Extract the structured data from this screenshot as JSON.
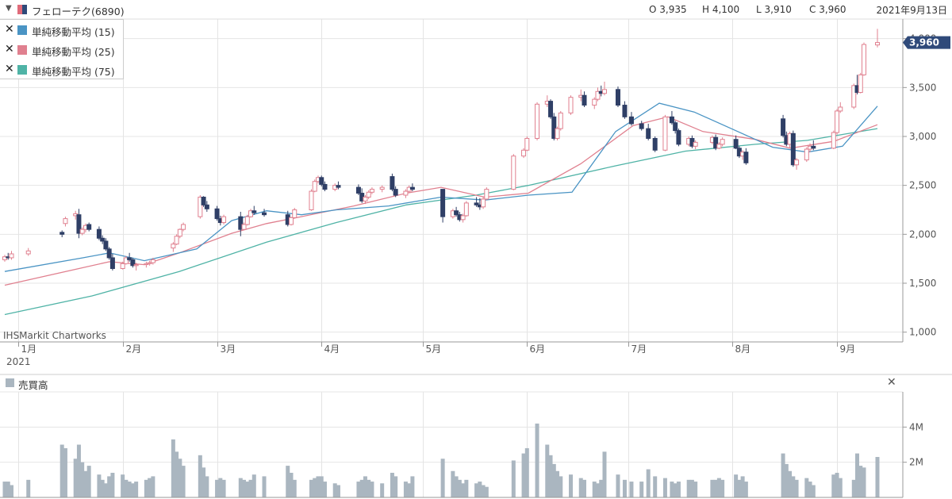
{
  "header": {
    "ticker": "フェローテク(6890)",
    "open": "O 3,935",
    "high": "H 4,100",
    "low": "L 3,910",
    "close": "C 3,960",
    "date": "2021年9月13日"
  },
  "legend": {
    "items": [
      {
        "label": "単純移動平均 (15)",
        "color": "#4a94c4"
      },
      {
        "label": "単純移動平均 (25)",
        "color": "#e0808f"
      },
      {
        "label": "単純移動平均 (75)",
        "color": "#4fb3a6"
      }
    ]
  },
  "watermark": "IHSMarkit Chartworks",
  "last_price_label": "3,960",
  "volume_panel": {
    "title": "売買高",
    "color": "#aab6c0"
  },
  "chart_data": {
    "type": "candlestick",
    "x_labels": [
      "1月",
      "2月",
      "3月",
      "4月",
      "5月",
      "6月",
      "7月",
      "8月",
      "9月"
    ],
    "year_label": "2021",
    "y_ticks": [
      "1,000",
      "1,500",
      "2,000",
      "2,500",
      "3,000",
      "3,500",
      "4,000"
    ],
    "y_tick_values": [
      1000,
      1500,
      2000,
      2500,
      3000,
      3500,
      4000
    ],
    "ylim": [
      900,
      4200
    ],
    "volume_ticks": [
      "2M",
      "4M"
    ],
    "volume_tick_values": [
      2000000,
      4000000
    ],
    "volume_ylim": [
      0,
      6000000
    ],
    "colors": {
      "up": "#e0808f",
      "down": "#2f3f66",
      "ma15": "#4a94c4",
      "ma25": "#e0808f",
      "ma75": "#4fb3a6",
      "volume": "#aab6c0",
      "last_price_bg": "#2f4a7a"
    },
    "last_price": 3960,
    "candles": [
      [
        1740,
        1790,
        1720,
        1770
      ],
      [
        1770,
        1810,
        1740,
        1760
      ],
      [
        1760,
        1830,
        1740,
        1800
      ],
      [
        1800,
        1860,
        1780,
        1830
      ],
      [
        2020,
        2040,
        1970,
        2000
      ],
      [
        2110,
        2180,
        2080,
        2160
      ],
      [
        2190,
        2240,
        2150,
        2210
      ],
      [
        2200,
        2260,
        1960,
        2010
      ],
      [
        2010,
        2070,
        1990,
        2050
      ],
      [
        2050,
        2110,
        2020,
        2090
      ],
      [
        2100,
        2120,
        2030,
        2050
      ],
      [
        2050,
        2080,
        1940,
        1960
      ],
      [
        1960,
        1990,
        1900,
        1930
      ],
      [
        1930,
        1960,
        1830,
        1850
      ],
      [
        1850,
        1870,
        1740,
        1760
      ],
      [
        1760,
        1800,
        1630,
        1650
      ],
      [
        1650,
        1720,
        1640,
        1700
      ],
      [
        1700,
        1780,
        1690,
        1760
      ],
      [
        1760,
        1810,
        1720,
        1740
      ],
      [
        1740,
        1760,
        1660,
        1680
      ],
      [
        1680,
        1710,
        1630,
        1690
      ],
      [
        1690,
        1720,
        1660,
        1700
      ],
      [
        1700,
        1730,
        1680,
        1710
      ],
      [
        1710,
        1760,
        1690,
        1740
      ],
      [
        1860,
        1920,
        1820,
        1900
      ],
      [
        1900,
        2000,
        1890,
        1980
      ],
      [
        1980,
        2060,
        1960,
        2050
      ],
      [
        2050,
        2120,
        2030,
        2100
      ],
      [
        2180,
        2400,
        2160,
        2380
      ],
      [
        2380,
        2390,
        2280,
        2300
      ],
      [
        2300,
        2340,
        2230,
        2260
      ],
      [
        2260,
        2290,
        2140,
        2160
      ],
      [
        2160,
        2190,
        2090,
        2120
      ],
      [
        2120,
        2200,
        2100,
        2180
      ],
      [
        2180,
        2230,
        1980,
        2050
      ],
      [
        2050,
        2120,
        2040,
        2100
      ],
      [
        2100,
        2200,
        2090,
        2180
      ],
      [
        2180,
        2260,
        2170,
        2240
      ],
      [
        2240,
        2290,
        2200,
        2220
      ],
      [
        2220,
        2260,
        2180,
        2200
      ],
      [
        2200,
        2240,
        2080,
        2100
      ],
      [
        2100,
        2180,
        2090,
        2170
      ],
      [
        2170,
        2270,
        2160,
        2250
      ],
      [
        2250,
        2460,
        2240,
        2440
      ],
      [
        2440,
        2560,
        2430,
        2540
      ],
      [
        2540,
        2600,
        2520,
        2580
      ],
      [
        2580,
        2600,
        2490,
        2510
      ],
      [
        2510,
        2540,
        2440,
        2460
      ],
      [
        2460,
        2520,
        2440,
        2500
      ],
      [
        2500,
        2540,
        2460,
        2480
      ],
      [
        2480,
        2510,
        2400,
        2420
      ],
      [
        2420,
        2470,
        2320,
        2340
      ],
      [
        2340,
        2400,
        2310,
        2380
      ],
      [
        2380,
        2450,
        2360,
        2430
      ],
      [
        2430,
        2480,
        2410,
        2460
      ],
      [
        2460,
        2500,
        2430,
        2480
      ],
      [
        2590,
        2620,
        2440,
        2460
      ],
      [
        2460,
        2490,
        2380,
        2400
      ],
      [
        2400,
        2460,
        2370,
        2440
      ],
      [
        2440,
        2500,
        2420,
        2480
      ],
      [
        2480,
        2520,
        2440,
        2460
      ],
      [
        2460,
        2460,
        2120,
        2180
      ],
      [
        2180,
        2260,
        2160,
        2240
      ],
      [
        2240,
        2280,
        2180,
        2200
      ],
      [
        2200,
        2230,
        2130,
        2150
      ],
      [
        2150,
        2210,
        2120,
        2190
      ],
      [
        2190,
        2340,
        2180,
        2320
      ],
      [
        2320,
        2380,
        2280,
        2300
      ],
      [
        2300,
        2370,
        2250,
        2280
      ],
      [
        2280,
        2380,
        2260,
        2360
      ],
      [
        2360,
        2480,
        2350,
        2460
      ],
      [
        2460,
        2820,
        2450,
        2800
      ],
      [
        2800,
        2880,
        2780,
        2860
      ],
      [
        2860,
        3000,
        2850,
        2980
      ],
      [
        2980,
        3350,
        2960,
        3330
      ],
      [
        3330,
        3420,
        3300,
        3360
      ],
      [
        3360,
        3380,
        3180,
        3200
      ],
      [
        3200,
        3240,
        2960,
        2980
      ],
      [
        2980,
        3100,
        2960,
        3080
      ],
      [
        3080,
        3260,
        3060,
        3240
      ],
      [
        3240,
        3420,
        3220,
        3400
      ],
      [
        3400,
        3480,
        3360,
        3420
      ],
      [
        3420,
        3460,
        3300,
        3320
      ],
      [
        3320,
        3400,
        3280,
        3380
      ],
      [
        3380,
        3500,
        3360,
        3460
      ],
      [
        3460,
        3520,
        3410,
        3440
      ],
      [
        3440,
        3560,
        3420,
        3480
      ],
      [
        3480,
        3510,
        3300,
        3320
      ],
      [
        3320,
        3360,
        3180,
        3200
      ],
      [
        3200,
        3250,
        3110,
        3130
      ],
      [
        3130,
        3160,
        3060,
        3080
      ],
      [
        3080,
        3130,
        2960,
        2980
      ],
      [
        2980,
        3000,
        2840,
        2860
      ],
      [
        2860,
        3220,
        2850,
        3200
      ],
      [
        3200,
        3260,
        3120,
        3140
      ],
      [
        3140,
        3160,
        3030,
        3060
      ],
      [
        3060,
        3080,
        2900,
        2920
      ],
      [
        2920,
        3000,
        2900,
        2980
      ],
      [
        2980,
        3010,
        2880,
        2900
      ],
      [
        2900,
        2960,
        2870,
        2940
      ],
      [
        2940,
        3010,
        2920,
        2990
      ],
      [
        2990,
        3020,
        2860,
        2880
      ],
      [
        2880,
        2940,
        2870,
        2920
      ],
      [
        2920,
        2990,
        2900,
        2970
      ],
      [
        2970,
        3010,
        2870,
        2880
      ],
      [
        2880,
        2900,
        2780,
        2800
      ],
      [
        2800,
        2860,
        2760,
        2840
      ],
      [
        2840,
        2880,
        2710,
        2730
      ],
      [
        3180,
        3220,
        2990,
        3010
      ],
      [
        3010,
        3050,
        2900,
        2920
      ],
      [
        2920,
        3050,
        2880,
        3030
      ],
      [
        3030,
        3060,
        2690,
        2710
      ],
      [
        2710,
        2780,
        2660,
        2760
      ],
      [
        2760,
        2890,
        2740,
        2870
      ],
      [
        2870,
        2930,
        2840,
        2900
      ],
      [
        2900,
        2960,
        2860,
        2880
      ],
      [
        2880,
        3060,
        2870,
        3040
      ],
      [
        3040,
        3280,
        3020,
        3260
      ],
      [
        3260,
        3350,
        3240,
        3300
      ],
      [
        3300,
        3540,
        3280,
        3520
      ],
      [
        3520,
        3630,
        3430,
        3450
      ],
      [
        3450,
        3650,
        3440,
        3630
      ],
      [
        3630,
        3960,
        3620,
        3940
      ],
      [
        3935,
        4100,
        3910,
        3960
      ]
    ],
    "candle_dates": [
      "2020-12-28",
      "2020-12-29",
      "2020-12-30",
      "2021-01-04",
      "2021-01-14",
      "2021-01-15",
      "2021-01-18",
      "2021-01-19",
      "2021-01-20",
      "2021-01-21",
      "2021-01-22",
      "2021-01-25",
      "2021-01-26",
      "2021-01-27",
      "2021-01-28",
      "2021-01-29",
      "2021-02-01",
      "2021-02-02",
      "2021-02-03",
      "2021-02-04",
      "2021-02-05",
      "2021-02-08",
      "2021-02-09",
      "2021-02-10",
      "2021-02-16",
      "2021-02-17",
      "2021-02-18",
      "2021-02-19",
      "2021-02-24",
      "2021-02-25",
      "2021-02-26",
      "2021-03-01",
      "2021-03-02",
      "2021-03-03",
      "2021-03-08",
      "2021-03-09",
      "2021-03-10",
      "2021-03-11",
      "2021-03-12",
      "2021-03-15",
      "2021-03-22",
      "2021-03-23",
      "2021-03-24",
      "2021-03-29",
      "2021-03-30",
      "2021-03-31",
      "2021-04-01",
      "2021-04-02",
      "2021-04-05",
      "2021-04-06",
      "2021-04-12",
      "2021-04-13",
      "2021-04-14",
      "2021-04-15",
      "2021-04-16",
      "2021-04-19",
      "2021-04-22",
      "2021-04-23",
      "2021-04-26",
      "2021-04-27",
      "2021-04-28",
      "2021-05-07",
      "2021-05-10",
      "2021-05-11",
      "2021-05-12",
      "2021-05-13",
      "2021-05-14",
      "2021-05-17",
      "2021-05-18",
      "2021-05-19",
      "2021-05-20",
      "2021-05-28",
      "2021-05-31",
      "2021-06-01",
      "2021-06-04",
      "2021-06-07",
      "2021-06-08",
      "2021-06-09",
      "2021-06-10",
      "2021-06-11",
      "2021-06-14",
      "2021-06-17",
      "2021-06-18",
      "2021-06-21",
      "2021-06-22",
      "2021-06-23",
      "2021-06-24",
      "2021-06-28",
      "2021-06-30",
      "2021-07-02",
      "2021-07-05",
      "2021-07-07",
      "2021-07-09",
      "2021-07-12",
      "2021-07-14",
      "2021-07-15",
      "2021-07-16",
      "2021-07-19",
      "2021-07-20",
      "2021-07-21",
      "2021-07-26",
      "2021-07-27",
      "2021-07-28",
      "2021-07-29",
      "2021-08-02",
      "2021-08-03",
      "2021-08-04",
      "2021-08-05",
      "2021-08-16",
      "2021-08-17",
      "2021-08-18",
      "2021-08-19",
      "2021-08-20",
      "2021-08-23",
      "2021-08-24",
      "2021-08-25",
      "2021-08-31",
      "2021-09-01",
      "2021-09-02",
      "2021-09-06",
      "2021-09-07",
      "2021-09-08",
      "2021-09-09",
      "2021-09-13"
    ],
    "date_range": [
      "2020-12-28",
      "2021-09-13"
    ],
    "volume_m": [
      0.9,
      0.9,
      0.7,
      1.0,
      3.0,
      2.8,
      2.2,
      3.0,
      2.0,
      1.5,
      1.8,
      1.3,
      1.0,
      0.8,
      1.2,
      1.4,
      1.3,
      1.0,
      0.9,
      0.8,
      0.9,
      1.0,
      1.1,
      1.2,
      3.3,
      2.6,
      2.2,
      1.8,
      2.4,
      1.7,
      1.2,
      1.0,
      1.1,
      1.0,
      1.1,
      1.0,
      0.9,
      1.0,
      1.3,
      1.2,
      1.8,
      1.4,
      1.0,
      1.0,
      1.1,
      1.2,
      1.2,
      0.9,
      0.8,
      0.7,
      0.9,
      1.0,
      1.2,
      1.0,
      0.9,
      0.8,
      1.4,
      1.2,
      0.9,
      0.8,
      1.2,
      2.2,
      1.5,
      1.2,
      1.0,
      0.8,
      1.0,
      0.8,
      0.9,
      0.7,
      0.6,
      2.1,
      2.5,
      2.8,
      4.2,
      3.0,
      2.4,
      1.9,
      1.5,
      1.2,
      1.3,
      1.1,
      1.0,
      0.9,
      0.8,
      1.0,
      2.6,
      1.3,
      1.0,
      0.9,
      0.9,
      1.6,
      1.2,
      1.1,
      0.9,
      0.8,
      0.9,
      1.0,
      1.0,
      0.9,
      1.0,
      1.0,
      1.1,
      1.0,
      1.3,
      1.0,
      1.2,
      0.9,
      2.5,
      1.9,
      1.5,
      1.2,
      1.0,
      1.1,
      0.9,
      0.7,
      1.3,
      1.4,
      1.1,
      1.0,
      2.5,
      1.8,
      1.7,
      2.3
    ],
    "volume_dates": [
      "2020-12-28",
      "2020-12-29",
      "2020-12-30",
      "2021-01-04",
      "2021-01-14",
      "2021-01-15",
      "2021-01-18",
      "2021-01-19",
      "2021-01-20",
      "2021-01-21",
      "2021-01-22",
      "2021-01-25",
      "2021-01-26",
      "2021-01-27",
      "2021-01-28",
      "2021-01-29",
      "2021-02-01",
      "2021-02-02",
      "2021-02-03",
      "2021-02-04",
      "2021-02-05",
      "2021-02-08",
      "2021-02-09",
      "2021-02-10",
      "2021-02-16",
      "2021-02-17",
      "2021-02-18",
      "2021-02-19",
      "2021-02-24",
      "2021-02-25",
      "2021-02-26",
      "2021-03-01",
      "2021-03-02",
      "2021-03-03",
      "2021-03-08",
      "2021-03-09",
      "2021-03-10",
      "2021-03-11",
      "2021-03-12",
      "2021-03-15",
      "2021-03-22",
      "2021-03-23",
      "2021-03-24",
      "2021-03-29",
      "2021-03-30",
      "2021-03-31",
      "2021-04-01",
      "2021-04-02",
      "2021-04-05",
      "2021-04-06",
      "2021-04-12",
      "2021-04-13",
      "2021-04-14",
      "2021-04-15",
      "2021-04-16",
      "2021-04-19",
      "2021-04-22",
      "2021-04-23",
      "2021-04-26",
      "2021-04-27",
      "2021-04-28",
      "2021-05-07",
      "2021-05-10",
      "2021-05-11",
      "2021-05-12",
      "2021-05-13",
      "2021-05-14",
      "2021-05-17",
      "2021-05-18",
      "2021-05-19",
      "2021-05-20",
      "2021-05-28",
      "2021-05-31",
      "2021-06-01",
      "2021-06-04",
      "2021-06-07",
      "2021-06-08",
      "2021-06-09",
      "2021-06-10",
      "2021-06-11",
      "2021-06-14",
      "2021-06-17",
      "2021-06-18",
      "2021-06-21",
      "2021-06-22",
      "2021-06-23",
      "2021-06-24",
      "2021-06-28",
      "2021-06-30",
      "2021-07-02",
      "2021-07-05",
      "2021-07-07",
      "2021-07-09",
      "2021-07-12",
      "2021-07-14",
      "2021-07-15",
      "2021-07-16",
      "2021-07-19",
      "2021-07-20",
      "2021-07-21",
      "2021-07-26",
      "2021-07-27",
      "2021-07-28",
      "2021-07-29",
      "2021-08-02",
      "2021-08-03",
      "2021-08-04",
      "2021-08-05",
      "2021-08-16",
      "2021-08-17",
      "2021-08-18",
      "2021-08-19",
      "2021-08-20",
      "2021-08-23",
      "2021-08-24",
      "2021-08-25",
      "2021-08-31",
      "2021-09-01",
      "2021-09-02",
      "2021-09-06",
      "2021-09-07",
      "2021-09-08",
      "2021-09-09",
      "2021-09-13"
    ],
    "ma15": [
      [
        0.0,
        1620
      ],
      [
        0.09,
        1760
      ],
      [
        0.12,
        1810
      ],
      [
        0.16,
        1730
      ],
      [
        0.22,
        1850
      ],
      [
        0.26,
        2140
      ],
      [
        0.3,
        2240
      ],
      [
        0.34,
        2200
      ],
      [
        0.38,
        2250
      ],
      [
        0.44,
        2290
      ],
      [
        0.5,
        2380
      ],
      [
        0.55,
        2350
      ],
      [
        0.6,
        2400
      ],
      [
        0.65,
        2430
      ],
      [
        0.7,
        3050
      ],
      [
        0.75,
        3340
      ],
      [
        0.79,
        3250
      ],
      [
        0.84,
        3050
      ],
      [
        0.88,
        2890
      ],
      [
        0.92,
        2840
      ],
      [
        0.96,
        2900
      ],
      [
        1.0,
        3310
      ]
    ],
    "ma25": [
      [
        0.0,
        1480
      ],
      [
        0.08,
        1640
      ],
      [
        0.12,
        1720
      ],
      [
        0.16,
        1690
      ],
      [
        0.2,
        1810
      ],
      [
        0.26,
        2010
      ],
      [
        0.3,
        2110
      ],
      [
        0.34,
        2180
      ],
      [
        0.4,
        2290
      ],
      [
        0.46,
        2420
      ],
      [
        0.5,
        2480
      ],
      [
        0.55,
        2380
      ],
      [
        0.6,
        2420
      ],
      [
        0.66,
        2720
      ],
      [
        0.72,
        3110
      ],
      [
        0.76,
        3200
      ],
      [
        0.8,
        3050
      ],
      [
        0.86,
        2970
      ],
      [
        0.9,
        2880
      ],
      [
        0.95,
        2950
      ],
      [
        1.0,
        3120
      ]
    ],
    "ma75": [
      [
        0.0,
        1180
      ],
      [
        0.1,
        1370
      ],
      [
        0.2,
        1620
      ],
      [
        0.3,
        1920
      ],
      [
        0.38,
        2120
      ],
      [
        0.46,
        2300
      ],
      [
        0.54,
        2400
      ],
      [
        0.6,
        2500
      ],
      [
        0.7,
        2700
      ],
      [
        0.78,
        2850
      ],
      [
        0.86,
        2920
      ],
      [
        0.92,
        2960
      ],
      [
        1.0,
        3080
      ]
    ]
  }
}
